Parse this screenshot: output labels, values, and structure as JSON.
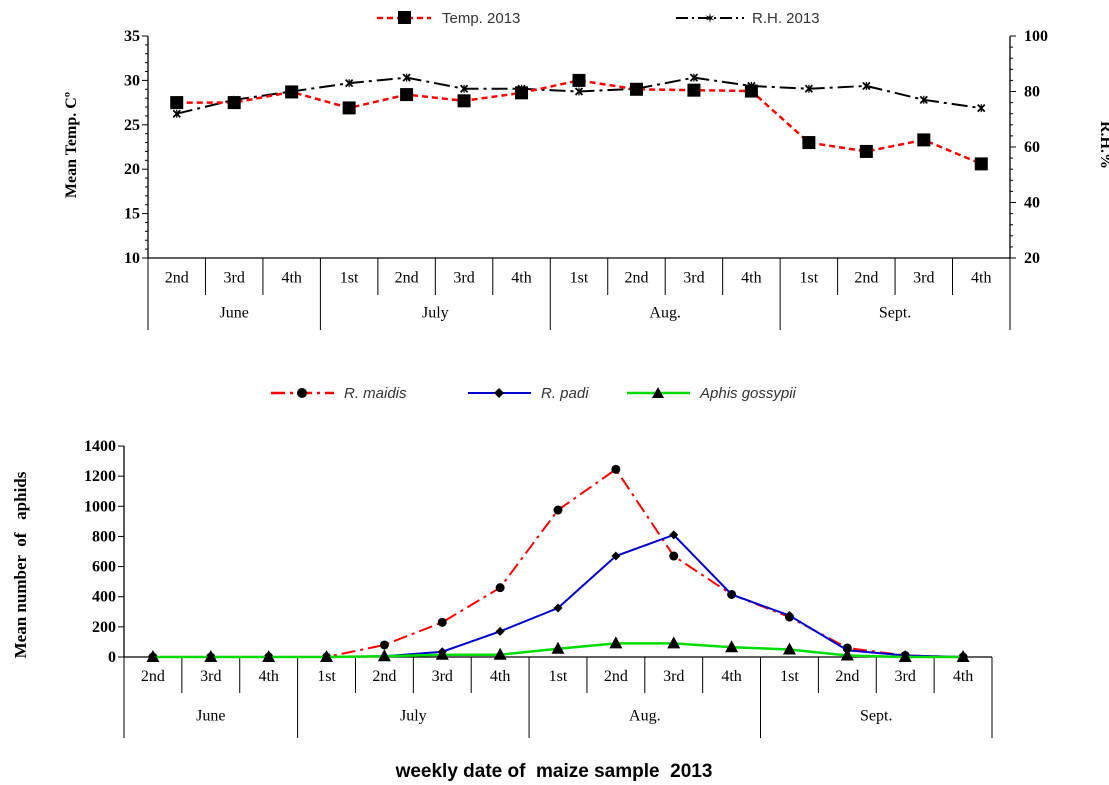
{
  "chart_data": [
    {
      "type": "line",
      "categories": [
        "2nd",
        "3rd",
        "4th",
        "1st",
        "2nd",
        "3rd",
        "4th",
        "1st",
        "2nd",
        "3rd",
        "4th",
        "1st",
        "2nd",
        "3rd",
        "4th"
      ],
      "groups": [
        {
          "label": "June",
          "count": 3
        },
        {
          "label": "July",
          "count": 4
        },
        {
          "label": "Aug.",
          "count": 4
        },
        {
          "label": "Sept.",
          "count": 4
        }
      ],
      "ylabel": "Mean Temp. Cº",
      "ylim": [
        10,
        35
      ],
      "yticks": [
        "10",
        "15",
        "20",
        "25",
        "30",
        "35"
      ],
      "y2label": "R.H.%",
      "y2lim": [
        20,
        100
      ],
      "y2ticks": [
        "20",
        "40",
        "60",
        "80",
        "100"
      ],
      "legend_position": "top",
      "series": [
        {
          "name": "Temp. 2013",
          "axis": "left",
          "color": "#ff0000",
          "marker": "square",
          "values": [
            27.5,
            27.5,
            28.7,
            26.9,
            28.4,
            27.7,
            28.6,
            30.0,
            29.0,
            28.9,
            28.8,
            23.0,
            22.0,
            23.3,
            20.6
          ]
        },
        {
          "name": "R.H. 2013",
          "axis": "right",
          "color": "#000000",
          "marker": "x",
          "values": [
            72,
            77,
            80,
            83,
            85,
            81,
            81,
            80,
            81,
            85,
            82,
            81,
            82,
            77,
            74
          ]
        }
      ]
    },
    {
      "type": "line",
      "categories": [
        "2nd",
        "3rd",
        "4th",
        "1st",
        "2nd",
        "3rd",
        "4th",
        "1st",
        "2nd",
        "3rd",
        "4th",
        "1st",
        "2nd",
        "3rd",
        "4th"
      ],
      "groups": [
        {
          "label": "June",
          "count": 3
        },
        {
          "label": "July",
          "count": 4
        },
        {
          "label": "Aug.",
          "count": 4
        },
        {
          "label": "Sept.",
          "count": 4
        }
      ],
      "ylabel": "Mean number  of   aphids",
      "xlabel": "weekly date of  maize sample  2013",
      "ylim": [
        0,
        1400
      ],
      "yticks": [
        "0",
        "200",
        "400",
        "600",
        "800",
        "1000",
        "1200",
        "1400"
      ],
      "legend_position": "top",
      "series": [
        {
          "name": "R. maidis",
          "color": "#ff0000",
          "marker": "circle",
          "values": [
            0,
            0,
            0,
            0,
            80,
            230,
            460,
            975,
            1245,
            670,
            415,
            265,
            60,
            10,
            0
          ]
        },
        {
          "name": "R. padi",
          "color": "#0000cc",
          "marker": "diamond",
          "values": [
            0,
            0,
            0,
            0,
            5,
            35,
            170,
            325,
            670,
            810,
            415,
            275,
            45,
            10,
            0
          ]
        },
        {
          "name": "Aphis gossypii",
          "color": "#00dd00",
          "marker": "triangle",
          "values": [
            0,
            0,
            0,
            0,
            5,
            15,
            15,
            55,
            90,
            90,
            65,
            50,
            10,
            0,
            0
          ]
        }
      ]
    }
  ]
}
